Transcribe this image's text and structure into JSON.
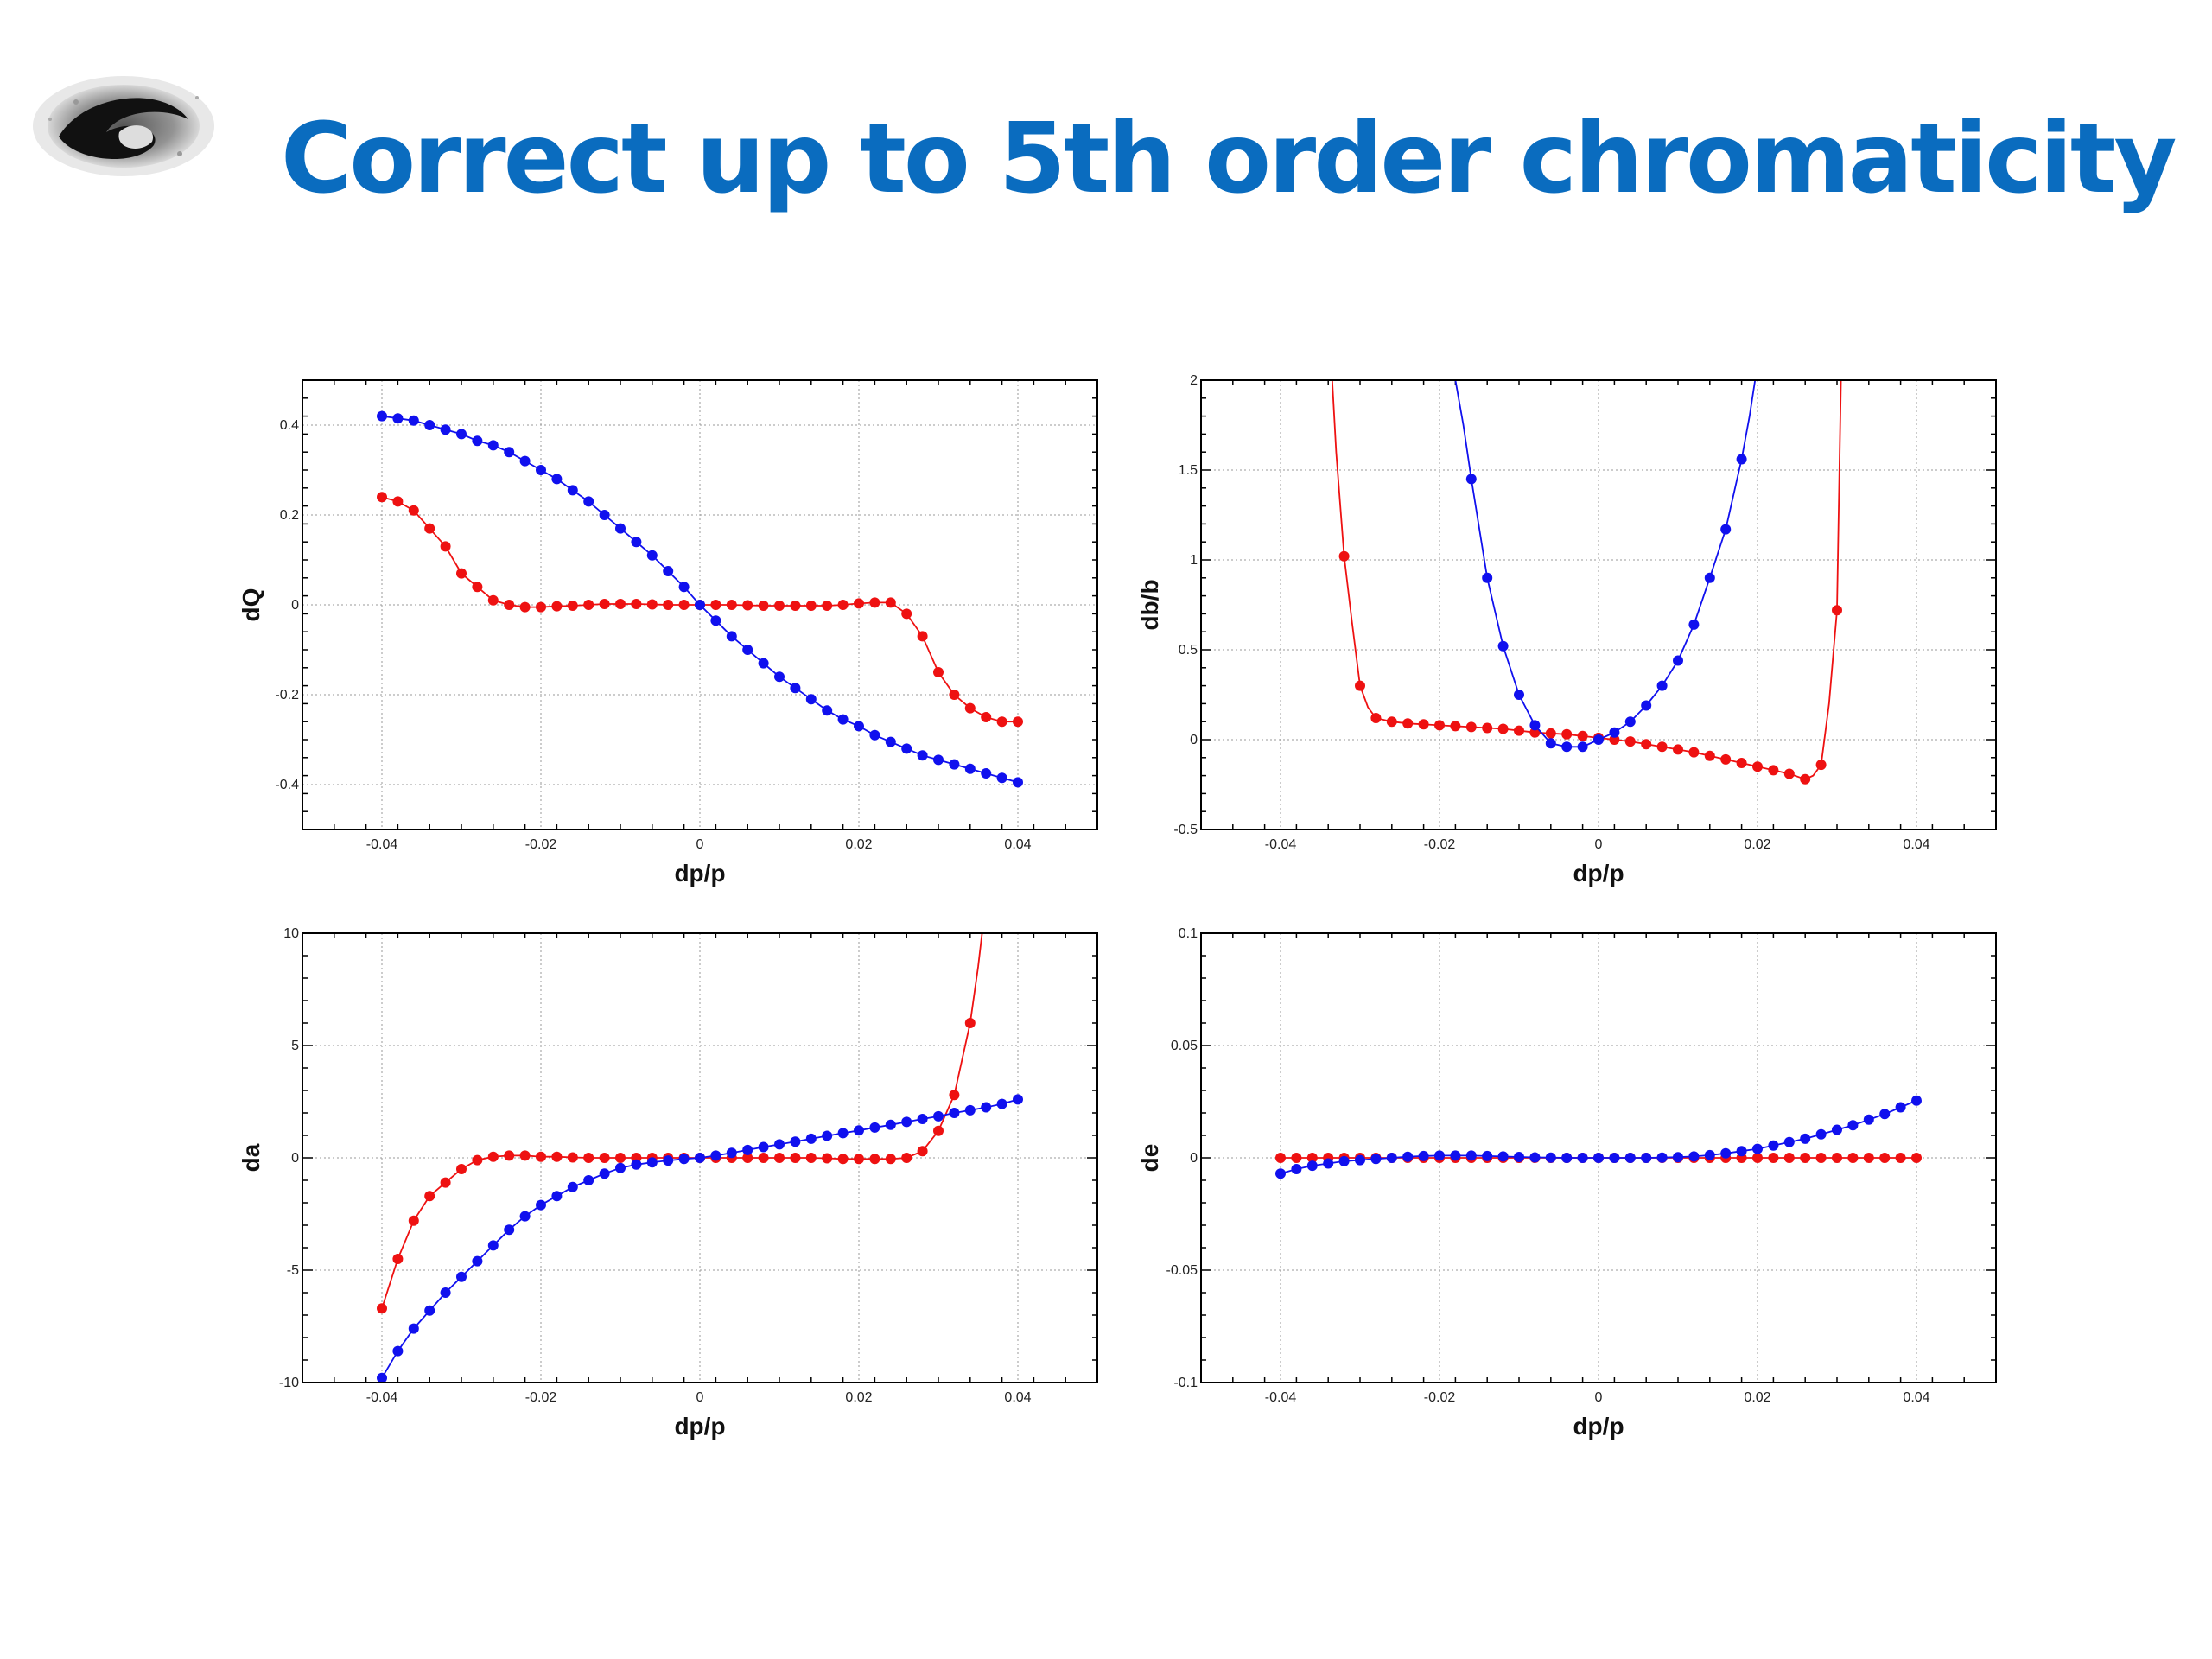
{
  "title": "Correct up to 5th order chromaticity",
  "colors": {
    "title": "#0a6cbf",
    "series_red": "#ee1111",
    "series_blue": "#1010ee"
  },
  "logo": {
    "name": "institute-logo"
  },
  "chart_data": [
    {
      "id": "dQ",
      "type": "line",
      "markers": true,
      "grid": true,
      "xlabel": "dp/p",
      "ylabel": "dQ",
      "xlim": [
        -0.05,
        0.05
      ],
      "ylim": [
        -0.5,
        0.5
      ],
      "xticks": [
        -0.04,
        -0.02,
        0,
        0.02,
        0.04
      ],
      "xtick_labels": [
        "-0.04",
        "-0.02",
        "0",
        "0.02",
        "0.04"
      ],
      "yticks": [
        -0.4,
        -0.2,
        0,
        0.2,
        0.4
      ],
      "ytick_labels": [
        "-0.4",
        "-0.2",
        "0",
        "0.2",
        "0.4"
      ],
      "series": [
        {
          "color": "#ee1111",
          "x": [
            -0.04,
            -0.038,
            -0.036,
            -0.034,
            -0.032,
            -0.03,
            -0.028,
            -0.026,
            -0.024,
            -0.022,
            -0.02,
            -0.018,
            -0.016,
            -0.014,
            -0.012,
            -0.01,
            -0.008,
            -0.006,
            -0.004,
            -0.002,
            0,
            0.002,
            0.004,
            0.006,
            0.008,
            0.01,
            0.012,
            0.014,
            0.016,
            0.018,
            0.02,
            0.022,
            0.024,
            0.026,
            0.028,
            0.03,
            0.032,
            0.034,
            0.036,
            0.038,
            0.04
          ],
          "y": [
            0.24,
            0.23,
            0.21,
            0.17,
            0.13,
            0.07,
            0.04,
            0.01,
            0.0,
            -0.005,
            -0.005,
            -0.003,
            -0.002,
            0.0,
            0.002,
            0.002,
            0.002,
            0.001,
            0.0,
            0.0,
            0.0,
            0.0,
            0.0,
            -0.001,
            -0.002,
            -0.002,
            -0.002,
            -0.002,
            -0.002,
            0.0,
            0.003,
            0.005,
            0.005,
            -0.02,
            -0.07,
            -0.15,
            -0.2,
            -0.23,
            -0.25,
            -0.26,
            -0.26
          ]
        },
        {
          "color": "#1010ee",
          "x": [
            -0.04,
            -0.038,
            -0.036,
            -0.034,
            -0.032,
            -0.03,
            -0.028,
            -0.026,
            -0.024,
            -0.022,
            -0.02,
            -0.018,
            -0.016,
            -0.014,
            -0.012,
            -0.01,
            -0.008,
            -0.006,
            -0.004,
            -0.002,
            0,
            0.002,
            0.004,
            0.006,
            0.008,
            0.01,
            0.012,
            0.014,
            0.016,
            0.018,
            0.02,
            0.022,
            0.024,
            0.026,
            0.028,
            0.03,
            0.032,
            0.034,
            0.036,
            0.038,
            0.04
          ],
          "y": [
            0.42,
            0.415,
            0.41,
            0.4,
            0.39,
            0.38,
            0.365,
            0.355,
            0.34,
            0.32,
            0.3,
            0.28,
            0.255,
            0.23,
            0.2,
            0.17,
            0.14,
            0.11,
            0.075,
            0.04,
            0.0,
            -0.035,
            -0.07,
            -0.1,
            -0.13,
            -0.16,
            -0.185,
            -0.21,
            -0.235,
            -0.255,
            -0.27,
            -0.29,
            -0.305,
            -0.32,
            -0.335,
            -0.345,
            -0.355,
            -0.365,
            -0.375,
            -0.385,
            -0.395
          ]
        }
      ]
    },
    {
      "id": "db",
      "type": "line",
      "markers": true,
      "grid": true,
      "xlabel": "dp/p",
      "ylabel": "db/b",
      "xlim": [
        -0.05,
        0.05
      ],
      "ylim": [
        -0.5,
        2
      ],
      "xticks": [
        -0.04,
        -0.02,
        0,
        0.02,
        0.04
      ],
      "xtick_labels": [
        "-0.04",
        "-0.02",
        "0",
        "0.02",
        "0.04"
      ],
      "yticks": [
        -0.5,
        0,
        0.5,
        1,
        1.5,
        2
      ],
      "ytick_labels": [
        "-0.5",
        "0",
        "0.5",
        "1",
        "1.5",
        "2"
      ],
      "series": [
        {
          "color": "#ee1111",
          "line_x": [
            -0.0335,
            -0.033,
            -0.032,
            -0.031,
            -0.03,
            -0.029,
            -0.028,
            -0.026,
            -0.024,
            -0.022,
            -0.02,
            -0.016,
            -0.012,
            -0.008,
            -0.004,
            0,
            0.004,
            0.008,
            0.012,
            0.016,
            0.02,
            0.024,
            0.026,
            0.027,
            0.028,
            0.029,
            0.03,
            0.0305
          ],
          "line_y": [
            2.0,
            1.6,
            1.02,
            0.65,
            0.3,
            0.18,
            0.12,
            0.1,
            0.09,
            0.085,
            0.08,
            0.07,
            0.06,
            0.04,
            0.03,
            0.01,
            -0.01,
            -0.04,
            -0.07,
            -0.11,
            -0.15,
            -0.19,
            -0.22,
            -0.2,
            -0.14,
            0.2,
            0.72,
            2.0
          ],
          "x": [
            -0.032,
            -0.03,
            -0.028,
            -0.026,
            -0.024,
            -0.022,
            -0.02,
            -0.018,
            -0.016,
            -0.014,
            -0.012,
            -0.01,
            -0.008,
            -0.006,
            -0.004,
            -0.002,
            0,
            0.002,
            0.004,
            0.006,
            0.008,
            0.01,
            0.012,
            0.014,
            0.016,
            0.018,
            0.02,
            0.022,
            0.024,
            0.026,
            0.028,
            0.03
          ],
          "y": [
            1.02,
            0.3,
            0.12,
            0.1,
            0.09,
            0.085,
            0.08,
            0.075,
            0.07,
            0.065,
            0.06,
            0.05,
            0.04,
            0.035,
            0.03,
            0.02,
            0.01,
            0.0,
            -0.01,
            -0.025,
            -0.04,
            -0.055,
            -0.07,
            -0.09,
            -0.11,
            -0.13,
            -0.15,
            -0.17,
            -0.19,
            -0.22,
            -0.14,
            0.72
          ]
        },
        {
          "color": "#1010ee",
          "line_x": [
            -0.018,
            -0.017,
            -0.016,
            -0.014,
            -0.012,
            -0.01,
            -0.008,
            -0.006,
            -0.004,
            -0.002,
            0,
            0.002,
            0.004,
            0.006,
            0.008,
            0.01,
            0.012,
            0.014,
            0.016,
            0.018,
            0.019,
            0.0197
          ],
          "line_y": [
            2.0,
            1.75,
            1.45,
            0.9,
            0.52,
            0.25,
            0.08,
            -0.02,
            -0.04,
            -0.04,
            0.0,
            0.04,
            0.1,
            0.19,
            0.3,
            0.44,
            0.64,
            0.9,
            1.17,
            1.56,
            1.8,
            2.0
          ],
          "x": [
            -0.016,
            -0.014,
            -0.012,
            -0.01,
            -0.008,
            -0.006,
            -0.004,
            -0.002,
            0,
            0.002,
            0.004,
            0.006,
            0.008,
            0.01,
            0.012,
            0.014,
            0.016,
            0.018
          ],
          "y": [
            1.45,
            0.9,
            0.52,
            0.25,
            0.08,
            -0.02,
            -0.04,
            -0.04,
            0.0,
            0.04,
            0.1,
            0.19,
            0.3,
            0.44,
            0.64,
            0.9,
            1.17,
            1.56
          ]
        }
      ]
    },
    {
      "id": "da",
      "type": "line",
      "markers": true,
      "grid": true,
      "xlabel": "dp/p",
      "ylabel": "da",
      "xlim": [
        -0.05,
        0.05
      ],
      "ylim": [
        -10,
        10
      ],
      "xticks": [
        -0.04,
        -0.02,
        0,
        0.02,
        0.04
      ],
      "xtick_labels": [
        "-0.04",
        "-0.02",
        "0",
        "0.02",
        "0.04"
      ],
      "yticks": [
        -10,
        -5,
        0,
        5,
        10
      ],
      "ytick_labels": [
        "-10",
        "-5",
        "0",
        "5",
        "10"
      ],
      "series": [
        {
          "color": "#ee1111",
          "line_x": [
            -0.04,
            -0.038,
            -0.036,
            -0.034,
            -0.032,
            -0.03,
            -0.028,
            -0.026,
            -0.024,
            -0.022,
            -0.02,
            -0.018,
            -0.016,
            -0.014,
            -0.012,
            -0.01,
            -0.008,
            -0.006,
            -0.004,
            -0.002,
            0,
            0.002,
            0.004,
            0.006,
            0.008,
            0.01,
            0.012,
            0.014,
            0.016,
            0.018,
            0.02,
            0.022,
            0.024,
            0.026,
            0.028,
            0.03,
            0.032,
            0.034,
            0.035,
            0.0355
          ],
          "line_y": [
            -6.7,
            -4.5,
            -2.8,
            -1.7,
            -1.1,
            -0.5,
            -0.1,
            0.05,
            0.1,
            0.1,
            0.05,
            0.05,
            0.02,
            0.0,
            0.0,
            0.0,
            0.0,
            0.0,
            0.0,
            0.0,
            0.0,
            0.0,
            0.0,
            0.0,
            0.0,
            0.0,
            0.0,
            0.0,
            -0.02,
            -0.05,
            -0.05,
            -0.05,
            -0.05,
            0.0,
            0.3,
            1.2,
            2.8,
            6.0,
            8.5,
            10.0
          ],
          "x": [
            -0.04,
            -0.038,
            -0.036,
            -0.034,
            -0.032,
            -0.03,
            -0.028,
            -0.026,
            -0.024,
            -0.022,
            -0.02,
            -0.018,
            -0.016,
            -0.014,
            -0.012,
            -0.01,
            -0.008,
            -0.006,
            -0.004,
            -0.002,
            0,
            0.002,
            0.004,
            0.006,
            0.008,
            0.01,
            0.012,
            0.014,
            0.016,
            0.018,
            0.02,
            0.022,
            0.024,
            0.026,
            0.028,
            0.03,
            0.032,
            0.034
          ],
          "y": [
            -6.7,
            -4.5,
            -2.8,
            -1.7,
            -1.1,
            -0.5,
            -0.1,
            0.05,
            0.1,
            0.1,
            0.05,
            0.05,
            0.02,
            0.0,
            0.0,
            0.0,
            0.0,
            0.0,
            0.0,
            0.0,
            0.0,
            0.0,
            0.0,
            0.0,
            0.0,
            0.0,
            0.0,
            0.0,
            -0.02,
            -0.05,
            -0.05,
            -0.05,
            -0.05,
            0.0,
            0.3,
            1.2,
            2.8,
            6.0
          ]
        },
        {
          "color": "#1010ee",
          "x": [
            -0.04,
            -0.038,
            -0.036,
            -0.034,
            -0.032,
            -0.03,
            -0.028,
            -0.026,
            -0.024,
            -0.022,
            -0.02,
            -0.018,
            -0.016,
            -0.014,
            -0.012,
            -0.01,
            -0.008,
            -0.006,
            -0.004,
            -0.002,
            0,
            0.002,
            0.004,
            0.006,
            0.008,
            0.01,
            0.012,
            0.014,
            0.016,
            0.018,
            0.02,
            0.022,
            0.024,
            0.026,
            0.028,
            0.03,
            0.032,
            0.034,
            0.036,
            0.038,
            0.04
          ],
          "y": [
            -9.8,
            -8.6,
            -7.6,
            -6.8,
            -6.0,
            -5.3,
            -4.6,
            -3.9,
            -3.2,
            -2.6,
            -2.1,
            -1.7,
            -1.3,
            -1.0,
            -0.7,
            -0.45,
            -0.3,
            -0.2,
            -0.12,
            -0.05,
            0.0,
            0.1,
            0.22,
            0.35,
            0.48,
            0.6,
            0.72,
            0.85,
            0.98,
            1.1,
            1.22,
            1.35,
            1.47,
            1.6,
            1.73,
            1.85,
            2.0,
            2.12,
            2.25,
            2.4,
            2.6
          ]
        }
      ]
    },
    {
      "id": "de",
      "type": "line",
      "markers": true,
      "grid": true,
      "xlabel": "dp/p",
      "ylabel": "de",
      "xlim": [
        -0.05,
        0.05
      ],
      "ylim": [
        -0.1,
        0.1
      ],
      "xticks": [
        -0.04,
        -0.02,
        0,
        0.02,
        0.04
      ],
      "xtick_labels": [
        "-0.04",
        "-0.02",
        "0",
        "0.02",
        "0.04"
      ],
      "yticks": [
        -0.1,
        -0.05,
        0,
        0.05,
        0.1
      ],
      "ytick_labels": [
        "-0.1",
        "-0.05",
        "0",
        "0.05",
        "0.1"
      ],
      "series": [
        {
          "color": "#ee1111",
          "x": [
            -0.04,
            -0.038,
            -0.036,
            -0.034,
            -0.032,
            -0.03,
            -0.028,
            -0.026,
            -0.024,
            -0.022,
            -0.02,
            -0.018,
            -0.016,
            -0.014,
            -0.012,
            -0.01,
            -0.008,
            -0.006,
            -0.004,
            -0.002,
            0,
            0.002,
            0.004,
            0.006,
            0.008,
            0.01,
            0.012,
            0.014,
            0.016,
            0.018,
            0.02,
            0.022,
            0.024,
            0.026,
            0.028,
            0.03,
            0.032,
            0.034,
            0.036,
            0.038,
            0.04
          ],
          "y": [
            0,
            0,
            0,
            0,
            0,
            0,
            0,
            0,
            0,
            0,
            0,
            0,
            0,
            0,
            0,
            0,
            0,
            0,
            0,
            0,
            0,
            0,
            0,
            0,
            0,
            0,
            0,
            0,
            0,
            0,
            0,
            0,
            0,
            0,
            0,
            0,
            0,
            0,
            0,
            0,
            0
          ]
        },
        {
          "color": "#1010ee",
          "x": [
            -0.04,
            -0.038,
            -0.036,
            -0.034,
            -0.032,
            -0.03,
            -0.028,
            -0.026,
            -0.024,
            -0.022,
            -0.02,
            -0.018,
            -0.016,
            -0.014,
            -0.012,
            -0.01,
            -0.008,
            -0.006,
            -0.004,
            -0.002,
            0,
            0.002,
            0.004,
            0.006,
            0.008,
            0.01,
            0.012,
            0.014,
            0.016,
            0.018,
            0.02,
            0.022,
            0.024,
            0.026,
            0.028,
            0.03,
            0.032,
            0.034,
            0.036,
            0.038,
            0.04
          ],
          "y": [
            -0.007,
            -0.005,
            -0.0035,
            -0.0025,
            -0.0015,
            -0.001,
            -0.0005,
            0.0,
            0.0005,
            0.0008,
            0.001,
            0.001,
            0.001,
            0.0008,
            0.0006,
            0.0004,
            0.0002,
            0.0001,
            0.0,
            0.0,
            0.0,
            0.0,
            0.0,
            0.0,
            0.0001,
            0.0003,
            0.0006,
            0.0012,
            0.002,
            0.003,
            0.004,
            0.0055,
            0.007,
            0.0085,
            0.0105,
            0.0125,
            0.0145,
            0.017,
            0.0195,
            0.0225,
            0.0255
          ]
        }
      ]
    }
  ]
}
